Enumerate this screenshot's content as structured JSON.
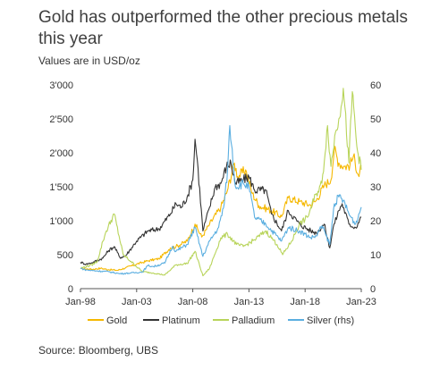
{
  "header": {
    "title": "Gold has outperformed the other precious metals this year",
    "subtitle": "Values are in USD/oz"
  },
  "footer": {
    "source": "Source: Bloomberg, UBS"
  },
  "chart_data": {
    "type": "line",
    "title": "Gold has outperformed the other precious metals this year",
    "subtitle": "Values are in USD/oz",
    "xlabel": "",
    "ylabel": "",
    "xlim": [
      1998,
      2023
    ],
    "ylim": [
      0,
      3000
    ],
    "y2lim": [
      0,
      60
    ],
    "x_ticks": [
      "Jan-98",
      "Jan-03",
      "Jan-08",
      "Jan-13",
      "Jan-18",
      "Jan-23"
    ],
    "x_tick_years": [
      1998,
      2003,
      2008,
      2013,
      2018,
      2023
    ],
    "y_ticks": [
      "0",
      "500",
      "1'000",
      "1'500",
      "2'000",
      "2'500",
      "3'000"
    ],
    "y_tick_values": [
      0,
      500,
      1000,
      1500,
      2000,
      2500,
      3000
    ],
    "y2_ticks": [
      "0",
      "10",
      "20",
      "30",
      "40",
      "50",
      "60"
    ],
    "y2_tick_values": [
      0,
      10,
      20,
      30,
      40,
      50,
      60
    ],
    "grid": false,
    "legend_position": "bottom",
    "series": [
      {
        "name": "Gold",
        "axis": "left",
        "color": "#f5b800",
        "x": [
          1998.0,
          1999.0,
          1999.8,
          2000.5,
          2001.3,
          2002.0,
          2003.0,
          2004.0,
          2005.0,
          2006.0,
          2006.5,
          2007.5,
          2008.2,
          2008.8,
          2009.5,
          2010.5,
          2011.0,
          2011.7,
          2012.0,
          2012.7,
          2013.3,
          2013.9,
          2015.0,
          2015.9,
          2016.5,
          2017.5,
          2018.5,
          2019.0,
          2019.7,
          2020.3,
          2020.6,
          2021.0,
          2021.5,
          2022.0,
          2022.3,
          2022.8,
          2023.0
        ],
        "y": [
          295,
          285,
          300,
          280,
          270,
          305,
          360,
          410,
          440,
          600,
          620,
          700,
          950,
          760,
          950,
          1200,
          1400,
          1850,
          1650,
          1750,
          1400,
          1220,
          1150,
          1060,
          1340,
          1280,
          1230,
          1300,
          1520,
          1600,
          2050,
          1850,
          1800,
          1820,
          1950,
          1650,
          1800
        ]
      },
      {
        "name": "Platinum",
        "axis": "left",
        "color": "#333333",
        "x": [
          1998.0,
          1998.5,
          1999.0,
          2000.0,
          2000.5,
          2001.0,
          2001.5,
          2002.0,
          2003.0,
          2004.0,
          2005.0,
          2006.0,
          2006.5,
          2007.0,
          2007.5,
          2008.0,
          2008.2,
          2008.4,
          2008.9,
          2009.5,
          2010.0,
          2010.5,
          2011.0,
          2011.4,
          2011.8,
          2012.5,
          2013.0,
          2013.5,
          2014.5,
          2015.0,
          2015.9,
          2016.5,
          2017.5,
          2018.5,
          2019.0,
          2019.7,
          2020.2,
          2020.5,
          2021.0,
          2021.3,
          2021.9,
          2022.5,
          2023.0
        ],
        "y": [
          390,
          360,
          380,
          450,
          560,
          620,
          460,
          480,
          700,
          850,
          880,
          1100,
          1250,
          1200,
          1350,
          1600,
          2200,
          1900,
          850,
          1200,
          1500,
          1550,
          1800,
          1850,
          1550,
          1600,
          1650,
          1450,
          1450,
          1100,
          850,
          1150,
          950,
          850,
          820,
          950,
          600,
          900,
          1150,
          1250,
          950,
          900,
          1050
        ]
      },
      {
        "name": "Palladium",
        "axis": "left",
        "color": "#b8d45a",
        "x": [
          1998.0,
          1999.0,
          1999.5,
          2000.0,
          2000.3,
          2001.0,
          2001.8,
          2002.5,
          2003.5,
          2004.5,
          2005.5,
          2006.5,
          2007.5,
          2008.2,
          2008.9,
          2009.5,
          2010.5,
          2011.1,
          2011.9,
          2012.5,
          2013.5,
          2014.5,
          2015.5,
          2016.0,
          2016.8,
          2017.5,
          2018.2,
          2019.0,
          2019.5,
          2020.0,
          2020.3,
          2020.7,
          2021.0,
          2021.4,
          2021.9,
          2022.2,
          2022.6,
          2023.0
        ],
        "y": [
          300,
          350,
          400,
          700,
          850,
          1100,
          500,
          400,
          250,
          230,
          200,
          350,
          370,
          550,
          190,
          300,
          750,
          800,
          650,
          620,
          720,
          850,
          650,
          500,
          700,
          950,
          1050,
          1400,
          1550,
          2400,
          1800,
          2300,
          2500,
          2950,
          1850,
          2900,
          2100,
          1750
        ]
      },
      {
        "name": "Silver (rhs)",
        "axis": "right",
        "color": "#5aaee0",
        "x": [
          1998.0,
          1998.5,
          1999.5,
          2000.5,
          2001.5,
          2002.5,
          2003.5,
          2004.0,
          2004.5,
          2005.5,
          2006.2,
          2006.5,
          2007.5,
          2008.2,
          2008.9,
          2009.5,
          2010.3,
          2010.8,
          2011.1,
          2011.3,
          2011.8,
          2012.5,
          2013.0,
          2013.5,
          2014.5,
          2015.9,
          2016.5,
          2017.5,
          2018.5,
          2019.0,
          2019.5,
          2020.2,
          2020.6,
          2021.0,
          2021.4,
          2021.9,
          2022.5,
          2023.0
        ],
        "y": [
          6.0,
          5.5,
          5.2,
          5.0,
          4.4,
          4.6,
          4.9,
          6.8,
          6.5,
          7.5,
          12.5,
          11.0,
          13.0,
          18.0,
          9.5,
          14.0,
          18.0,
          25.0,
          35.0,
          48.0,
          30.0,
          31.0,
          30.0,
          21.0,
          19.0,
          14.0,
          18.0,
          17.0,
          15.0,
          15.5,
          18.5,
          13.0,
          25.0,
          27.0,
          26.0,
          22.0,
          19.0,
          24.0
        ]
      }
    ]
  }
}
